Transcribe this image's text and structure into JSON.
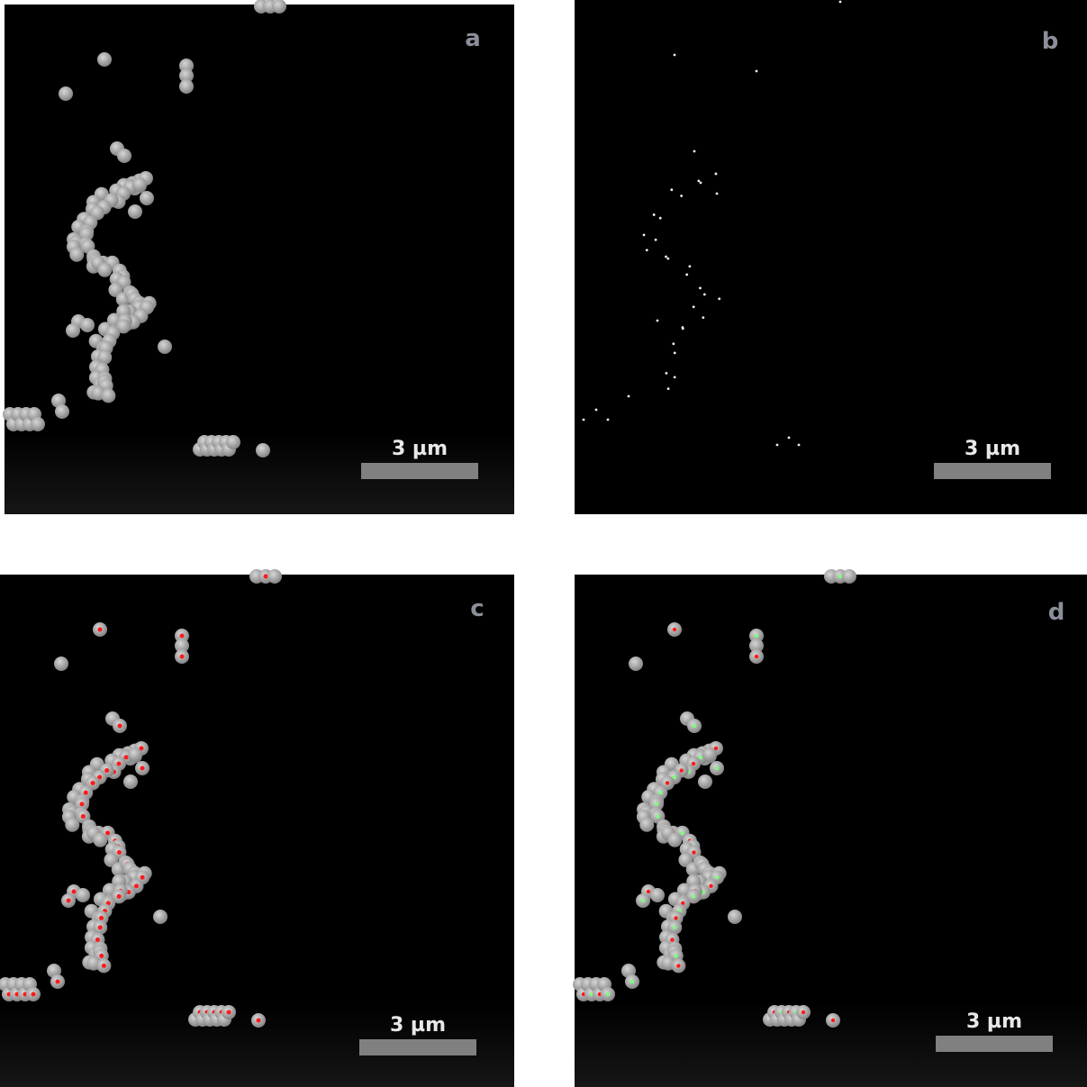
{
  "panels": [
    {
      "label": "a",
      "scale_bar": "3 µm"
    },
    {
      "label": "b",
      "scale_bar": "3 µm"
    },
    {
      "label": "c",
      "scale_bar": "3 µm"
    },
    {
      "label": "d",
      "scale_bar": "3 µm"
    }
  ]
}
